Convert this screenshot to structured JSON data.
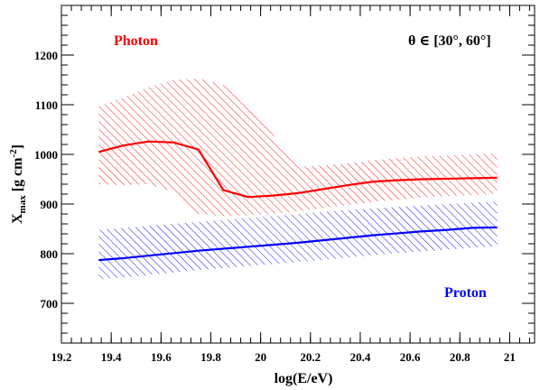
{
  "chart_data": {
    "type": "line",
    "xlabel": "log(E/eV)",
    "ylabel": "X",
    "ylabel_sub": "max",
    "ylabel_units": "[g cm",
    "ylabel_sup": "-2",
    "ylabel_close": "]",
    "xlim": [
      19.2,
      21.1
    ],
    "ylim": [
      620,
      1300
    ],
    "xticks": [
      19.2,
      19.4,
      19.6,
      19.8,
      20,
      20.2,
      20.4,
      20.6,
      20.8,
      21
    ],
    "xtick_labels": [
      "19.2",
      "19.4",
      "19.6",
      "19.8",
      "20",
      "20.2",
      "20.4",
      "20.6",
      "20.8",
      "21"
    ],
    "yticks": [
      700,
      800,
      900,
      1000,
      1100,
      1200
    ],
    "ytick_labels": [
      "700",
      "800",
      "900",
      "1000",
      "1100",
      "1200"
    ],
    "annotation": "θ ∈ [30°, 60°]",
    "series": [
      {
        "name": "Photon",
        "color": "#ff0000",
        "x": [
          19.35,
          19.45,
          19.55,
          19.65,
          19.75,
          19.85,
          19.95,
          20.05,
          20.15,
          20.25,
          20.35,
          20.45,
          20.55,
          20.65,
          20.75,
          20.85,
          20.95
        ],
        "y": [
          1005,
          1018,
          1026,
          1024,
          1010,
          928,
          914,
          917,
          922,
          930,
          938,
          945,
          948,
          950,
          951,
          952,
          953
        ],
        "band_upper": [
          1097,
          1115,
          1135,
          1150,
          1153,
          1140,
          1100,
          1040,
          975,
          978,
          982,
          988,
          993,
          996,
          998,
          1000,
          1002
        ],
        "band_lower": [
          940,
          938,
          940,
          925,
          880,
          876,
          877,
          880,
          885,
          892,
          898,
          904,
          909,
          913,
          916,
          918,
          920
        ]
      },
      {
        "name": "Proton",
        "color": "#0000ff",
        "x": [
          19.35,
          19.45,
          19.55,
          19.65,
          19.75,
          19.85,
          19.95,
          20.05,
          20.15,
          20.25,
          20.35,
          20.45,
          20.55,
          20.65,
          20.75,
          20.85,
          20.95
        ],
        "y": [
          787,
          791,
          796,
          801,
          806,
          810,
          814,
          818,
          822,
          827,
          832,
          837,
          841,
          845,
          848,
          852,
          853
        ],
        "band_upper": [
          848,
          852,
          856,
          860,
          864,
          868,
          872,
          876,
          880,
          884,
          888,
          891,
          894,
          897,
          900,
          903,
          905
        ],
        "band_lower": [
          748,
          752,
          757,
          762,
          767,
          771,
          775,
          779,
          783,
          787,
          792,
          797,
          801,
          805,
          808,
          812,
          815
        ]
      }
    ],
    "grid": false,
    "legend": "none"
  }
}
